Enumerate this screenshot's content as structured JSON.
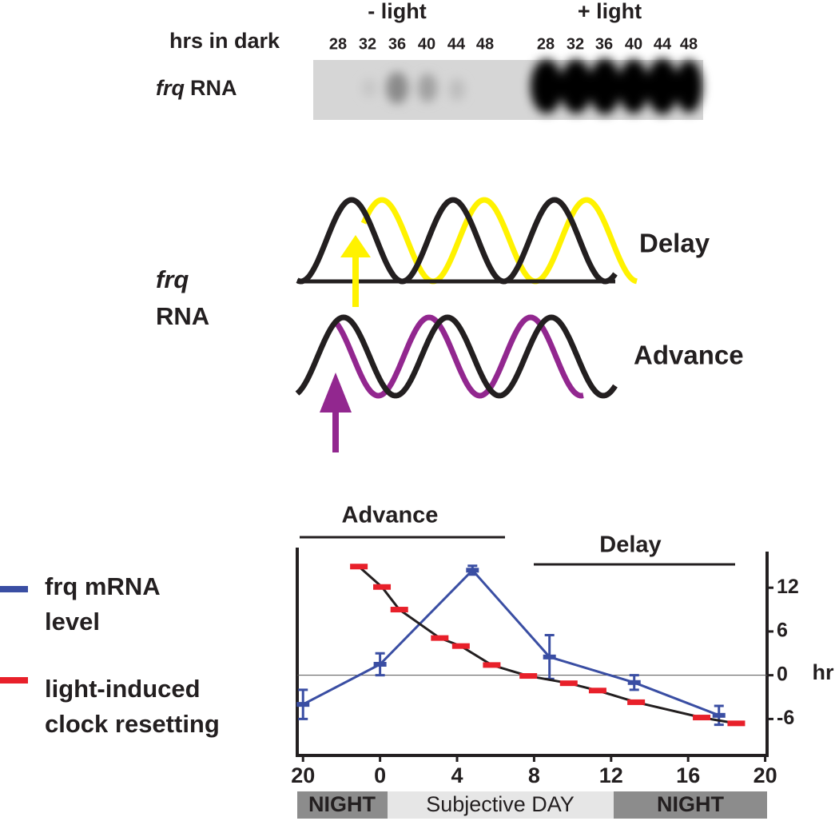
{
  "blot": {
    "conditions": [
      "- light",
      "+ light"
    ],
    "lane_header": "hrs in dark",
    "lanes": [
      [
        "28",
        "32",
        "36",
        "40",
        "44",
        "48"
      ],
      [
        "28",
        "32",
        "36",
        "40",
        "44",
        "48"
      ]
    ],
    "row_label_italic": "frq",
    "row_label": "RNA"
  },
  "diagram": {
    "label_italic": "frq",
    "label": "RNA",
    "delay": "Delay",
    "advance": "Advance"
  },
  "chart_data": {
    "type": "line",
    "annotations": [
      "Advance",
      "Delay"
    ],
    "y_label": "hr",
    "xlim": [
      -4.3,
      20.1
    ],
    "xticks": [
      {
        "value": -4,
        "label": "20"
      },
      0,
      4,
      8,
      12,
      16,
      20
    ],
    "ylim": [
      -11,
      17.5
    ],
    "yticks": [
      -6,
      0,
      6,
      12
    ],
    "zero_line": true,
    "series": [
      {
        "name": "frq mRNA level",
        "color": "#3a4ea3",
        "mode": "lines+markers",
        "x": [
          -4,
          0,
          4.8,
          8.8,
          13.2,
          17.6
        ],
        "values": [
          -4,
          1.5,
          14.4,
          2.5,
          -1,
          -5.5
        ],
        "errors": [
          2,
          1.5,
          0.6,
          3,
          1,
          1.3
        ]
      },
      {
        "name": "light-induced clock resetting",
        "color": "#e8202a",
        "mode": "markers+fit",
        "x": [
          -1.1,
          0.1,
          1.0,
          3.1,
          4.2,
          5.8,
          7.7,
          9.8,
          11.3,
          13.3,
          16.7,
          18.5
        ],
        "values": [
          14.9,
          12.1,
          9.0,
          5.1,
          4.0,
          1.4,
          -0.1,
          -1.1,
          -2.1,
          -3.7,
          -5.8,
          -6.6
        ]
      }
    ],
    "phase_bands": [
      "NIGHT",
      "Subjective DAY",
      "NIGHT"
    ]
  }
}
